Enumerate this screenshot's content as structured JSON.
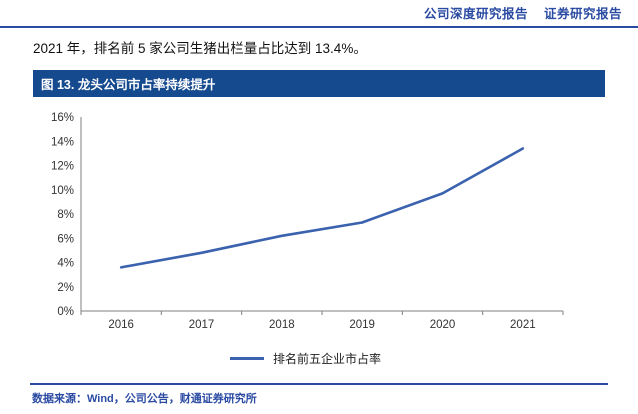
{
  "header": {
    "left": "公司深度研究报告",
    "right": "证券研究报告"
  },
  "body": {
    "paragraph": "2021 年，排名前 5 家公司生猪出栏量占比达到 13.4%。"
  },
  "figure": {
    "caption": "图 13. 龙头公司市占率持续提升"
  },
  "chart_data": {
    "type": "line",
    "title": "龙头公司市占率持续提升",
    "categories": [
      "2016",
      "2017",
      "2018",
      "2019",
      "2020",
      "2021"
    ],
    "series": [
      {
        "name": "排名前五企业市占率",
        "values": [
          3.6,
          4.8,
          6.2,
          7.3,
          9.7,
          13.4
        ]
      }
    ],
    "xlabel": "",
    "ylabel": "",
    "ylim": [
      0,
      16
    ],
    "ytick_step": 2,
    "ytick_format": "percent",
    "grid": false,
    "legend_position": "bottom",
    "line_color": "#3A62AE"
  },
  "footer": {
    "source": "数据来源：Wind，公司公告，财通证券研究所"
  },
  "colors": {
    "accent_blue": "#2B4BA3",
    "banner_blue": "#164A8F",
    "line_blue": "#3A62AE",
    "axis_gray": "#7f7f7f"
  }
}
